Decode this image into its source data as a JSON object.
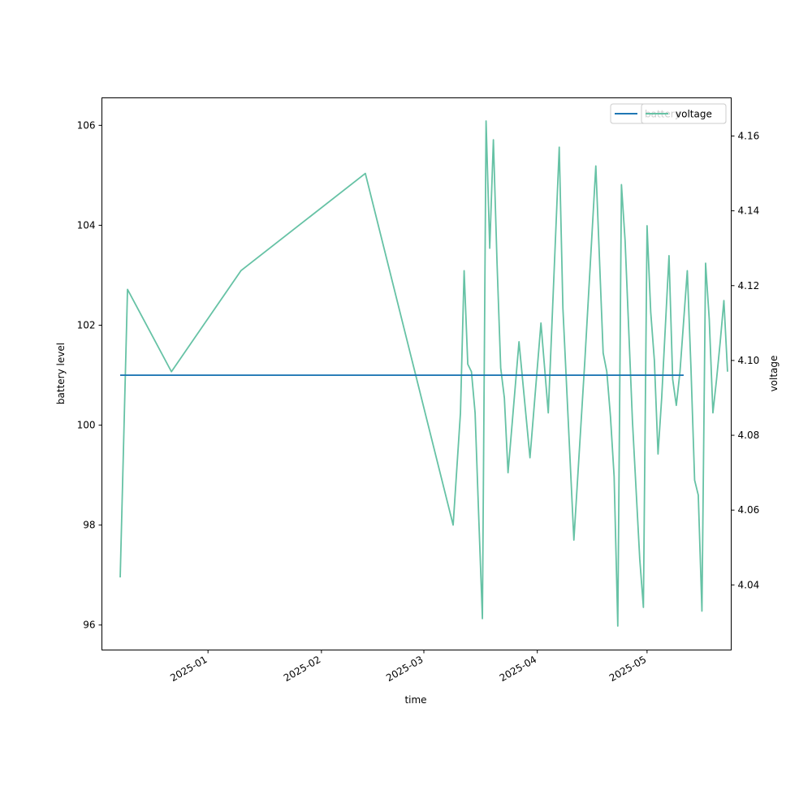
{
  "chart_data": {
    "type": "line",
    "xlabel": "time",
    "ylabel_left": "battery level",
    "ylabel_right": "voltage",
    "x_tick_labels": [
      "2025-01",
      "2025-02",
      "2025-03",
      "2025-04",
      "2025-05"
    ],
    "x_tick_dates": [
      "2025-01-01",
      "2025-02-01",
      "2025-03-01",
      "2025-04-01",
      "2025-05-01"
    ],
    "xlim": [
      "2024-12-03",
      "2025-05-24"
    ],
    "y_left_ticks": [
      96,
      98,
      100,
      102,
      104,
      106
    ],
    "y_left_lim": [
      95.5,
      106.55
    ],
    "y_right_ticks": [
      "4.04",
      "4.06",
      "4.08",
      "4.10",
      "4.12",
      "4.14",
      "4.16"
    ],
    "y_right_lim": [
      4.0226,
      4.1702
    ],
    "grid": false,
    "legend_placement": "top-right",
    "colors": {
      "battery": "#1f77b4",
      "voltage": "#66c2a5"
    },
    "series": [
      {
        "name": "battery",
        "axis": "left",
        "points": [
          [
            "2024-12-08",
            101
          ],
          [
            "2025-05-11",
            101
          ]
        ]
      },
      {
        "name": "voltage",
        "axis": "right",
        "points": [
          [
            "2024-12-08",
            4.042
          ],
          [
            "2024-12-10",
            4.119
          ],
          [
            "2024-12-22",
            4.097
          ],
          [
            "2025-01-10",
            4.124
          ],
          [
            "2025-02-13",
            4.15
          ],
          [
            "2025-03-09",
            4.056
          ],
          [
            "2025-03-11",
            4.086
          ],
          [
            "2025-03-12",
            4.124
          ],
          [
            "2025-03-13",
            4.099
          ],
          [
            "2025-03-14",
            4.097
          ],
          [
            "2025-03-15",
            4.086
          ],
          [
            "2025-03-16",
            4.058
          ],
          [
            "2025-03-17",
            4.031
          ],
          [
            "2025-03-18",
            4.164
          ],
          [
            "2025-03-19",
            4.13
          ],
          [
            "2025-03-20",
            4.159
          ],
          [
            "2025-03-21",
            4.126
          ],
          [
            "2025-03-22",
            4.098
          ],
          [
            "2025-03-23",
            4.09
          ],
          [
            "2025-03-24",
            4.07
          ],
          [
            "2025-03-27",
            4.105
          ],
          [
            "2025-03-30",
            4.074
          ],
          [
            "2025-04-02",
            4.11
          ],
          [
            "2025-04-04",
            4.086
          ],
          [
            "2025-04-07",
            4.157
          ],
          [
            "2025-04-08",
            4.114
          ],
          [
            "2025-04-11",
            4.052
          ],
          [
            "2025-04-14",
            4.1
          ],
          [
            "2025-04-17",
            4.152
          ],
          [
            "2025-04-19",
            4.102
          ],
          [
            "2025-04-20",
            4.097
          ],
          [
            "2025-04-21",
            4.085
          ],
          [
            "2025-04-22",
            4.069
          ],
          [
            "2025-04-23",
            4.029
          ],
          [
            "2025-04-24",
            4.147
          ],
          [
            "2025-04-25",
            4.132
          ],
          [
            "2025-04-27",
            4.084
          ],
          [
            "2025-04-29",
            4.047
          ],
          [
            "2025-04-30",
            4.034
          ],
          [
            "2025-05-01",
            4.136
          ],
          [
            "2025-05-02",
            4.113
          ],
          [
            "2025-05-03",
            4.1
          ],
          [
            "2025-05-04",
            4.075
          ],
          [
            "2025-05-05",
            4.09
          ],
          [
            "2025-05-07",
            4.128
          ],
          [
            "2025-05-08",
            4.095
          ],
          [
            "2025-05-09",
            4.088
          ],
          [
            "2025-05-10",
            4.097
          ],
          [
            "2025-05-12",
            4.124
          ],
          [
            "2025-05-13",
            4.098
          ],
          [
            "2025-05-14",
            4.068
          ],
          [
            "2025-05-15",
            4.064
          ],
          [
            "2025-05-16",
            4.033
          ],
          [
            "2025-05-17",
            4.126
          ],
          [
            "2025-05-18",
            4.111
          ],
          [
            "2025-05-19",
            4.086
          ],
          [
            "2025-05-20",
            4.095
          ],
          [
            "2025-05-21",
            4.105
          ],
          [
            "2025-05-22",
            4.116
          ],
          [
            "2025-05-23",
            4.097
          ]
        ]
      }
    ]
  }
}
